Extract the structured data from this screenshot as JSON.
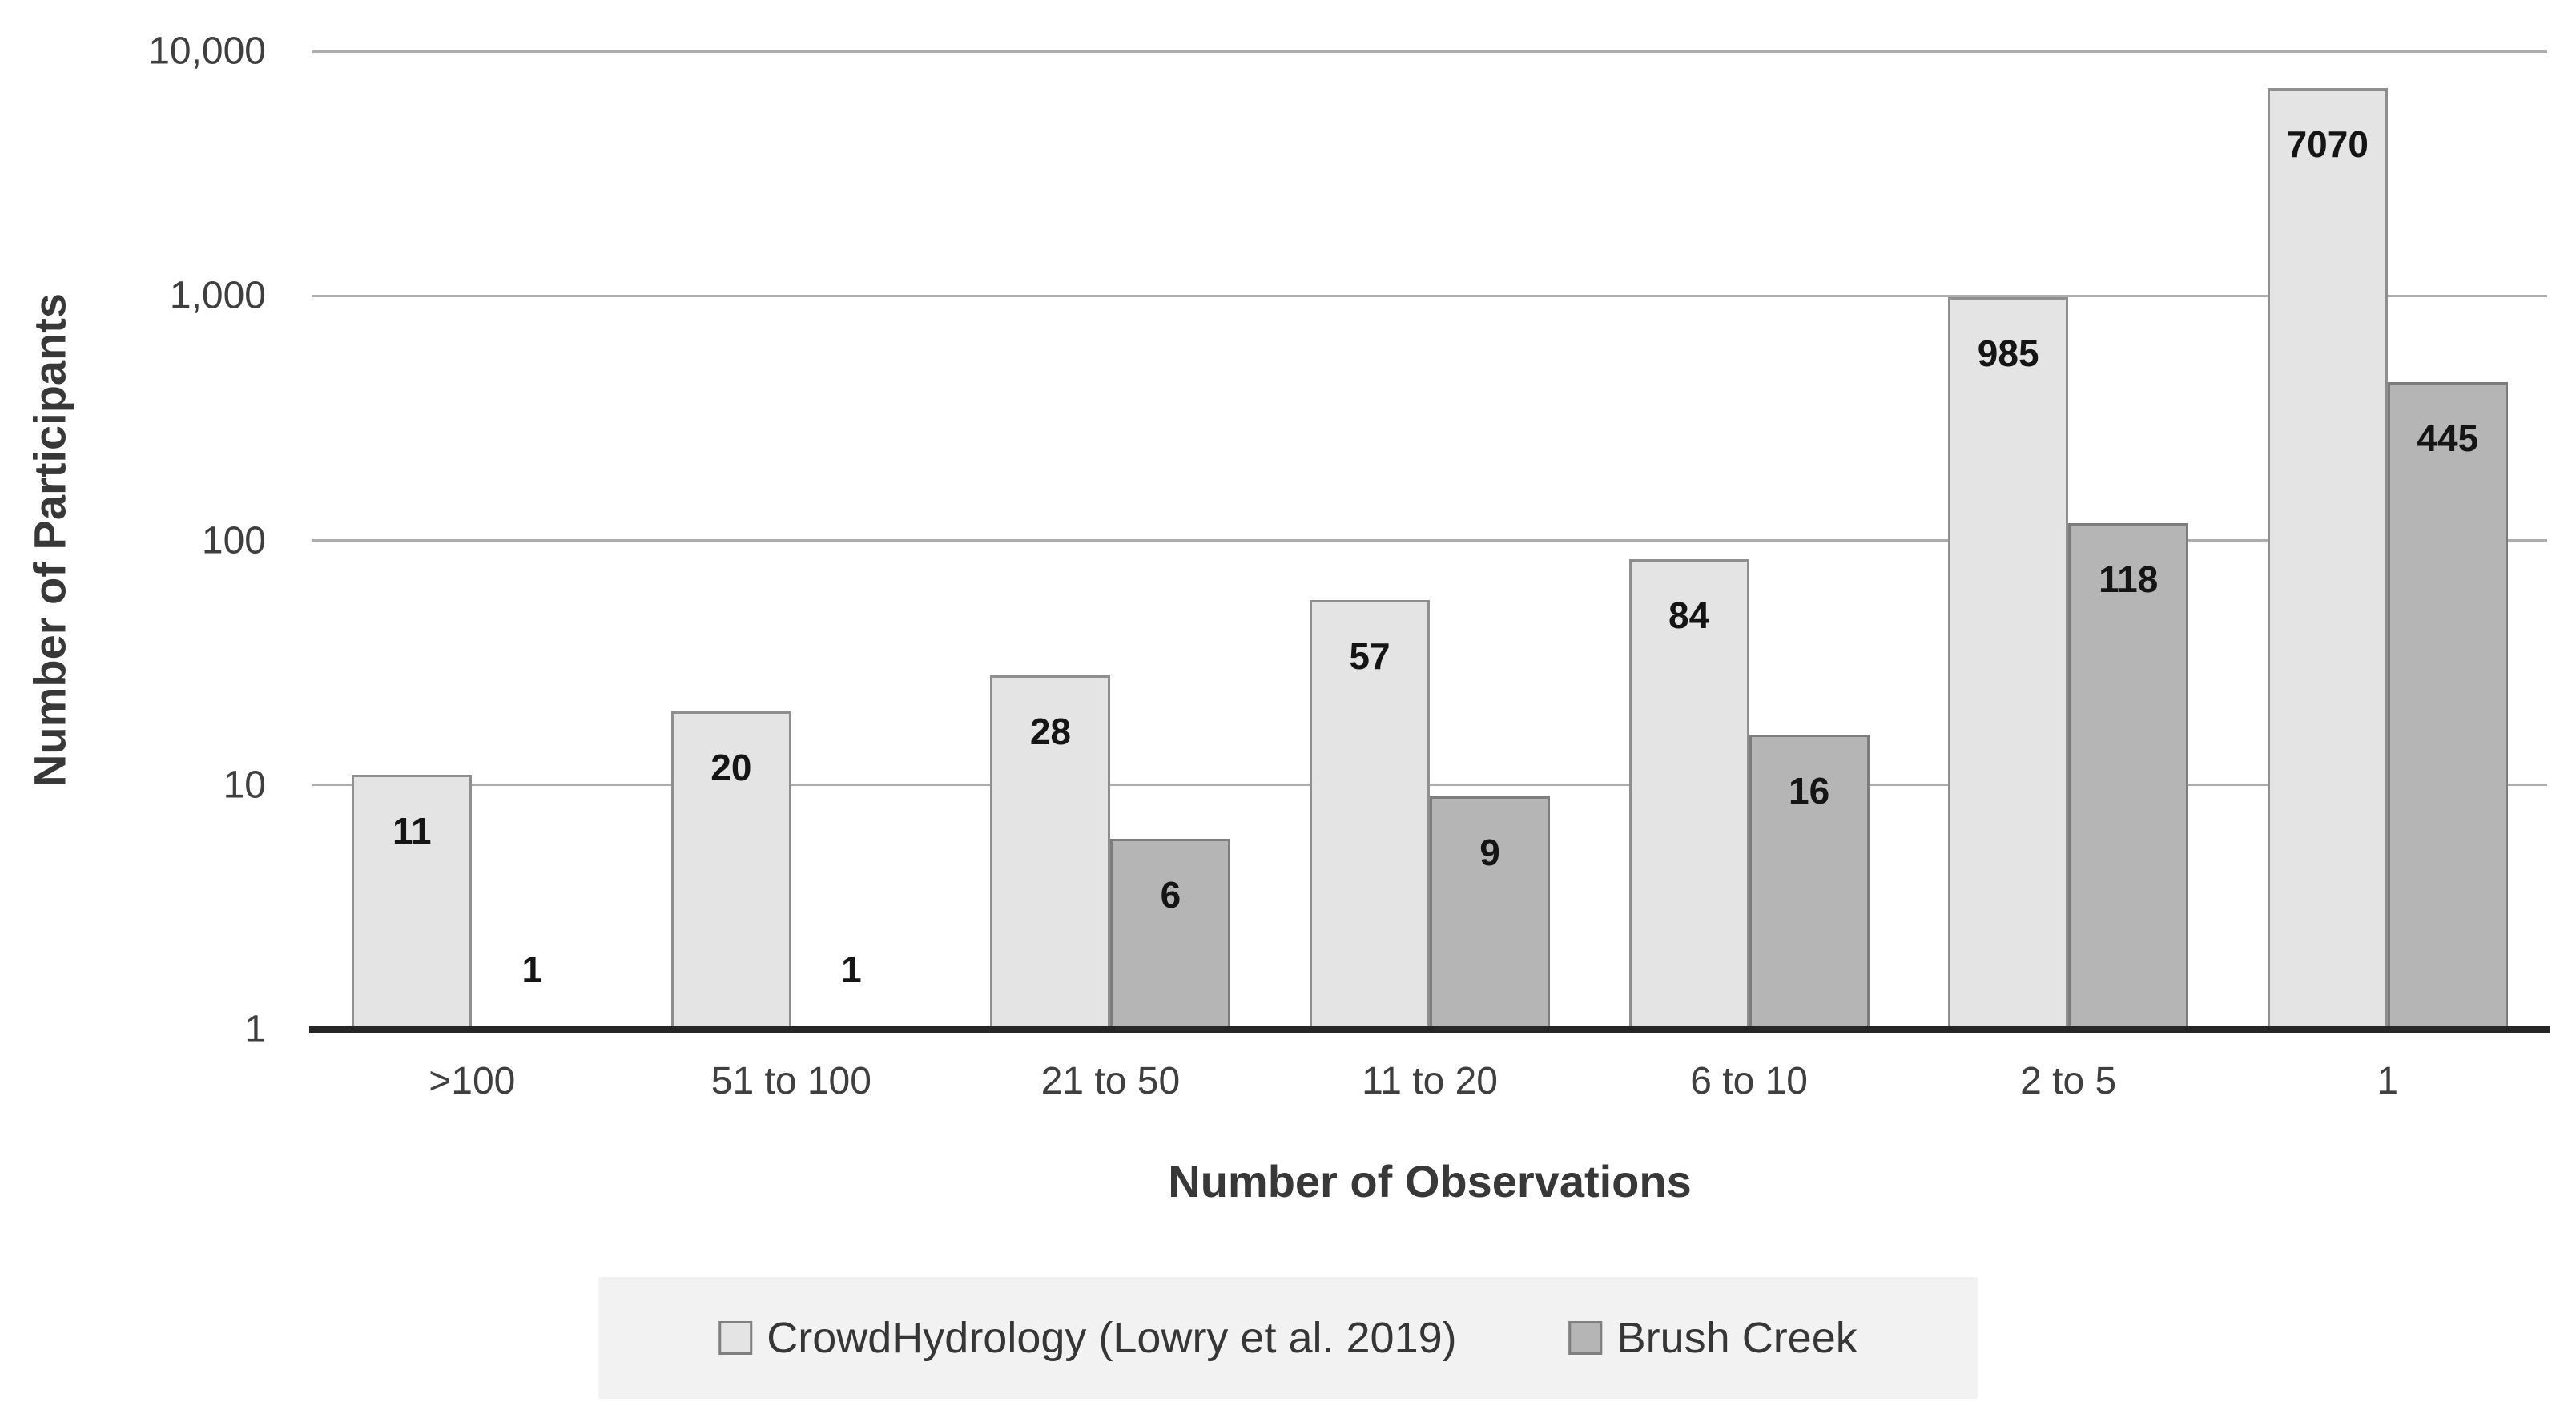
{
  "chart_data": {
    "type": "bar",
    "title": "",
    "categories": [
      ">100",
      "51 to 100",
      "21 to 50",
      "11 to 20",
      "6 to 10",
      "2 to 5",
      "1"
    ],
    "series": [
      {
        "name": "CrowdHydrology (Lowry et al. 2019)",
        "values": [
          11,
          20,
          28,
          57,
          84,
          985,
          7070
        ],
        "fill": "#e4e4e4",
        "border": "#8f8f8f"
      },
      {
        "name": "Brush Creek",
        "values": [
          1,
          1,
          6,
          9,
          16,
          118,
          445
        ],
        "fill": "#b5b5b5",
        "border": "#7d7d7d"
      }
    ],
    "xlabel": "Number of Observations",
    "ylabel": "Number of Participants",
    "y_scale": "log",
    "ylim": [
      1,
      10000
    ],
    "y_ticks": [
      "10,000",
      "1,000",
      "100",
      "10",
      "1"
    ],
    "grid": true,
    "legend_position": "bottom",
    "colors": {
      "gridline": "#adadad",
      "axis_line": "#262626",
      "legend_background": "#f2f2f2",
      "text": "#3f3f3f"
    }
  }
}
